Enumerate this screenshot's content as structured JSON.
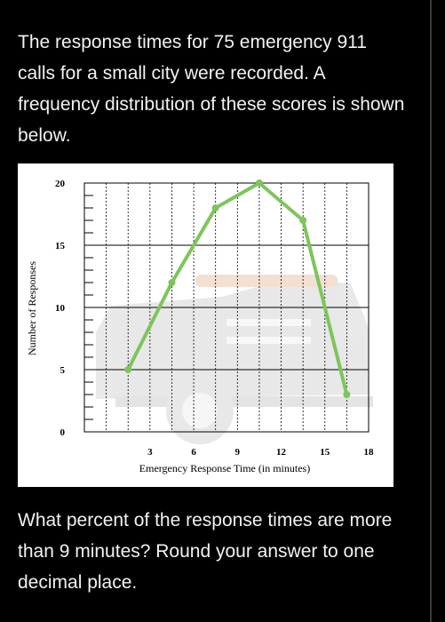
{
  "question": {
    "intro": "The response times for 75 emergency 911 calls for a small city were recorded. A frequency distribution of these scores is shown below.",
    "prompt": "What percent of the response times are more than 9 minutes? Round your answer to one decimal place."
  },
  "chart_data": {
    "type": "line",
    "title": "",
    "xlabel": "Emergency Response Time (in minutes)",
    "ylabel": "Number of Responses",
    "x": [
      1.5,
      4.5,
      7.5,
      10.5,
      13.5,
      16.5
    ],
    "values": [
      5,
      12,
      18,
      20,
      17,
      3
    ],
    "xlim": [
      -1.5,
      18
    ],
    "ylim": [
      0,
      20
    ],
    "xticks": [
      3,
      6,
      9,
      12,
      15,
      18
    ],
    "yticks": [
      0,
      5,
      10,
      15,
      20
    ],
    "grid": true,
    "line_color": "#7dc55b"
  }
}
